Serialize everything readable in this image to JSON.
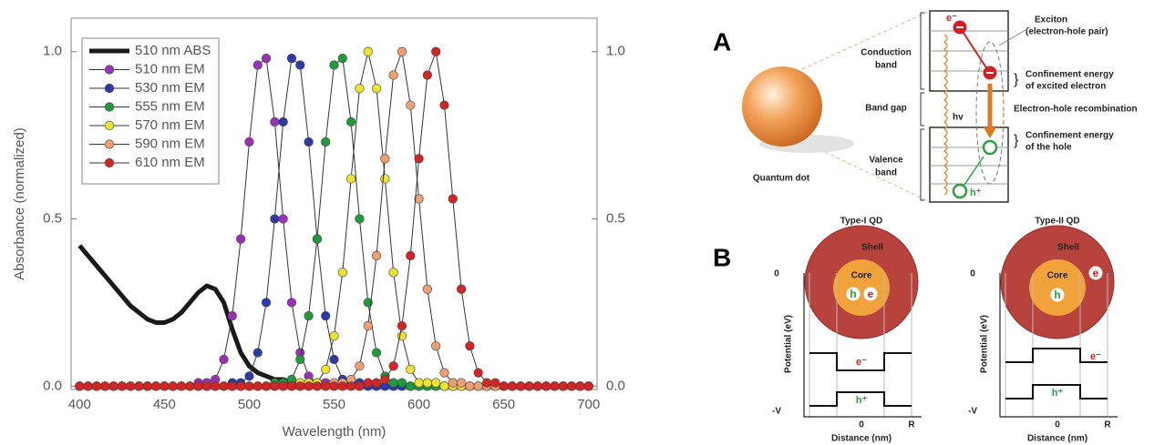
{
  "chart_data": {
    "type": "line",
    "xlabel": "Wavelength (nm)",
    "ylabel": "Absorbance (normalized)",
    "xlim": [
      395,
      705
    ],
    "xticks": [
      400,
      450,
      500,
      550,
      600,
      650,
      700
    ],
    "ylim": [
      -0.01,
      1.1
    ],
    "yticks": [
      {
        "value": 0,
        "label": "0.0"
      },
      {
        "value": 0.5,
        "label": "0.5"
      },
      {
        "value": 1,
        "label": "1.0"
      }
    ],
    "y2lim": [
      -0.01,
      1.1
    ],
    "y2ticks": [
      {
        "value": 0,
        "label": "0.0"
      },
      {
        "value": 0.5,
        "label": "0.5"
      },
      {
        "value": 1,
        "label": "1.0"
      }
    ],
    "legend": "upper left",
    "x": [
      400,
      405,
      410,
      415,
      420,
      425,
      430,
      435,
      440,
      445,
      450,
      455,
      460,
      465,
      470,
      475,
      480,
      485,
      490,
      495,
      500,
      505,
      510,
      515,
      520,
      525,
      530,
      535,
      540,
      545,
      550,
      555,
      560,
      565,
      570,
      575,
      580,
      585,
      590,
      595,
      600,
      605,
      610,
      615,
      620,
      625,
      630,
      635,
      640,
      645,
      650,
      655,
      660,
      665,
      670,
      675,
      680,
      685,
      690,
      695,
      700
    ],
    "series": [
      {
        "name": "510 nm ABS",
        "color": "#1a1a1a",
        "marker": false,
        "values": [
          0.42,
          0.39,
          0.36,
          0.33,
          0.3,
          0.27,
          0.24,
          0.22,
          0.2,
          0.19,
          0.19,
          0.2,
          0.22,
          0.25,
          0.28,
          0.3,
          0.29,
          0.25,
          0.17,
          0.1,
          0.06,
          0.04,
          0.03,
          0.02,
          0.02,
          0.01,
          0.01,
          0.01,
          0.01,
          0.01,
          0.01,
          0.01,
          0.01,
          0,
          0,
          0,
          0,
          0,
          0,
          0,
          0,
          0,
          0,
          0,
          0,
          0,
          0,
          0,
          0,
          0,
          0,
          0,
          0,
          0,
          0,
          0,
          0,
          0,
          0,
          0,
          0
        ]
      },
      {
        "name": "510 nm EM",
        "color": "#9b30b8",
        "marker": true,
        "values": [
          0,
          0,
          0,
          0,
          0,
          0,
          0,
          0,
          0,
          0,
          0,
          0,
          0,
          0,
          0.01,
          0.01,
          0.02,
          0.08,
          0.21,
          0.44,
          0.73,
          0.96,
          0.98,
          0.79,
          0.5,
          0.25,
          0.1,
          0.03,
          0.01,
          0.01,
          0,
          0,
          0,
          0,
          0,
          0,
          0,
          0,
          0,
          0,
          0,
          0,
          0,
          0,
          0,
          0,
          0,
          0,
          0,
          0,
          0,
          0,
          0,
          0,
          0,
          0,
          0,
          0,
          0,
          0,
          0
        ]
      },
      {
        "name": "530 nm EM",
        "color": "#2b3aa8",
        "marker": true,
        "values": [
          0,
          0,
          0,
          0,
          0,
          0,
          0,
          0,
          0,
          0,
          0,
          0,
          0,
          0,
          0,
          0,
          0,
          0,
          0.01,
          0.01,
          0.03,
          0.1,
          0.25,
          0.5,
          0.79,
          0.98,
          0.96,
          0.73,
          0.44,
          0.21,
          0.08,
          0.02,
          0.01,
          0.01,
          0,
          0,
          0,
          0,
          0,
          0,
          0,
          0,
          0,
          0,
          0,
          0,
          0,
          0,
          0,
          0,
          0,
          0,
          0,
          0,
          0,
          0,
          0,
          0,
          0,
          0,
          0
        ]
      },
      {
        "name": "555 nm EM",
        "color": "#1f9b3c",
        "marker": true,
        "values": [
          0,
          0,
          0,
          0,
          0,
          0,
          0,
          0,
          0,
          0,
          0,
          0,
          0,
          0,
          0,
          0,
          0,
          0,
          0,
          0,
          0,
          0,
          0,
          0.01,
          0.01,
          0.02,
          0.08,
          0.21,
          0.44,
          0.73,
          0.96,
          0.98,
          0.79,
          0.5,
          0.25,
          0.1,
          0.03,
          0.01,
          0.01,
          0,
          0,
          0,
          0,
          0,
          0,
          0,
          0,
          0,
          0,
          0,
          0,
          0,
          0,
          0,
          0,
          0,
          0,
          0,
          0,
          0,
          0
        ]
      },
      {
        "name": "570 nm EM",
        "color": "#ece32c",
        "marker": true,
        "values": [
          0,
          0,
          0,
          0,
          0,
          0,
          0,
          0,
          0,
          0,
          0,
          0,
          0,
          0,
          0,
          0,
          0,
          0,
          0,
          0,
          0,
          0,
          0,
          0,
          0,
          0,
          0.01,
          0.01,
          0.01,
          0.05,
          0.15,
          0.34,
          0.62,
          0.89,
          1.0,
          0.89,
          0.62,
          0.34,
          0.15,
          0.05,
          0.01,
          0.01,
          0.01,
          0,
          0,
          0,
          0,
          0,
          0,
          0,
          0,
          0,
          0,
          0,
          0,
          0,
          0,
          0,
          0,
          0,
          0
        ]
      },
      {
        "name": "590 nm EM",
        "color": "#ee9f72",
        "marker": true,
        "values": [
          0,
          0,
          0,
          0,
          0,
          0,
          0,
          0,
          0,
          0,
          0,
          0,
          0,
          0,
          0,
          0,
          0,
          0,
          0,
          0,
          0,
          0,
          0,
          0,
          0,
          0,
          0,
          0,
          0,
          0,
          0.01,
          0.01,
          0.02,
          0.06,
          0.18,
          0.39,
          0.68,
          0.93,
          1.0,
          0.84,
          0.56,
          0.29,
          0.12,
          0.04,
          0.01,
          0.01,
          0,
          0,
          0,
          0,
          0,
          0,
          0,
          0,
          0,
          0,
          0,
          0,
          0,
          0,
          0
        ]
      },
      {
        "name": "610 nm EM",
        "color": "#d42424",
        "marker": true,
        "values": [
          0,
          0,
          0,
          0,
          0,
          0,
          0,
          0,
          0,
          0,
          0,
          0,
          0,
          0,
          0,
          0,
          0,
          0,
          0,
          0,
          0,
          0,
          0,
          0,
          0,
          0,
          0,
          0,
          0,
          0,
          0,
          0,
          0,
          0,
          0.01,
          0.01,
          0.02,
          0.06,
          0.18,
          0.39,
          0.68,
          0.93,
          1.0,
          0.84,
          0.56,
          0.29,
          0.12,
          0.04,
          0.01,
          0.01,
          0,
          0,
          0,
          0,
          0,
          0,
          0,
          0,
          0,
          0,
          0
        ]
      }
    ]
  },
  "panel_a": {
    "label": "A",
    "quantum_dot": "Quantum dot",
    "conduction_band": [
      "Conduction",
      "band"
    ],
    "band_gap": "Band gap",
    "valence_band": [
      "Valence",
      "band"
    ],
    "exciton": [
      "Exciton",
      "(electron-hole pair)"
    ],
    "confinement_electron": [
      "Confinement energy",
      "of excited electron"
    ],
    "recombination": "Electron-hole recombination",
    "confinement_hole": [
      "Confinement energy",
      "of the hole"
    ],
    "hv": "hv",
    "electron": "e⁻",
    "hole": "h⁺"
  },
  "panel_b": {
    "label": "B",
    "type1": {
      "title": "Type-I QD",
      "shell": "Shell",
      "core": "Core",
      "h": "h",
      "e": "e",
      "y_top": "0",
      "y_bottom": "-V",
      "y_label": "Potential (eV)",
      "x_label": "Distance (nm)",
      "x_zero": "0",
      "x_r": "R",
      "e_level": "e⁻",
      "h_level": "h⁺"
    },
    "type2": {
      "title": "Type-II QD",
      "shell": "Shell",
      "core": "Core",
      "h": "h",
      "e": "e",
      "y_top": "0",
      "y_bottom": "-V",
      "y_label": "Potential (eV)",
      "x_label": "Distance (nm)",
      "x_zero": "0",
      "x_r": "R",
      "e_level": "e⁻",
      "h_level": "h⁺"
    }
  }
}
